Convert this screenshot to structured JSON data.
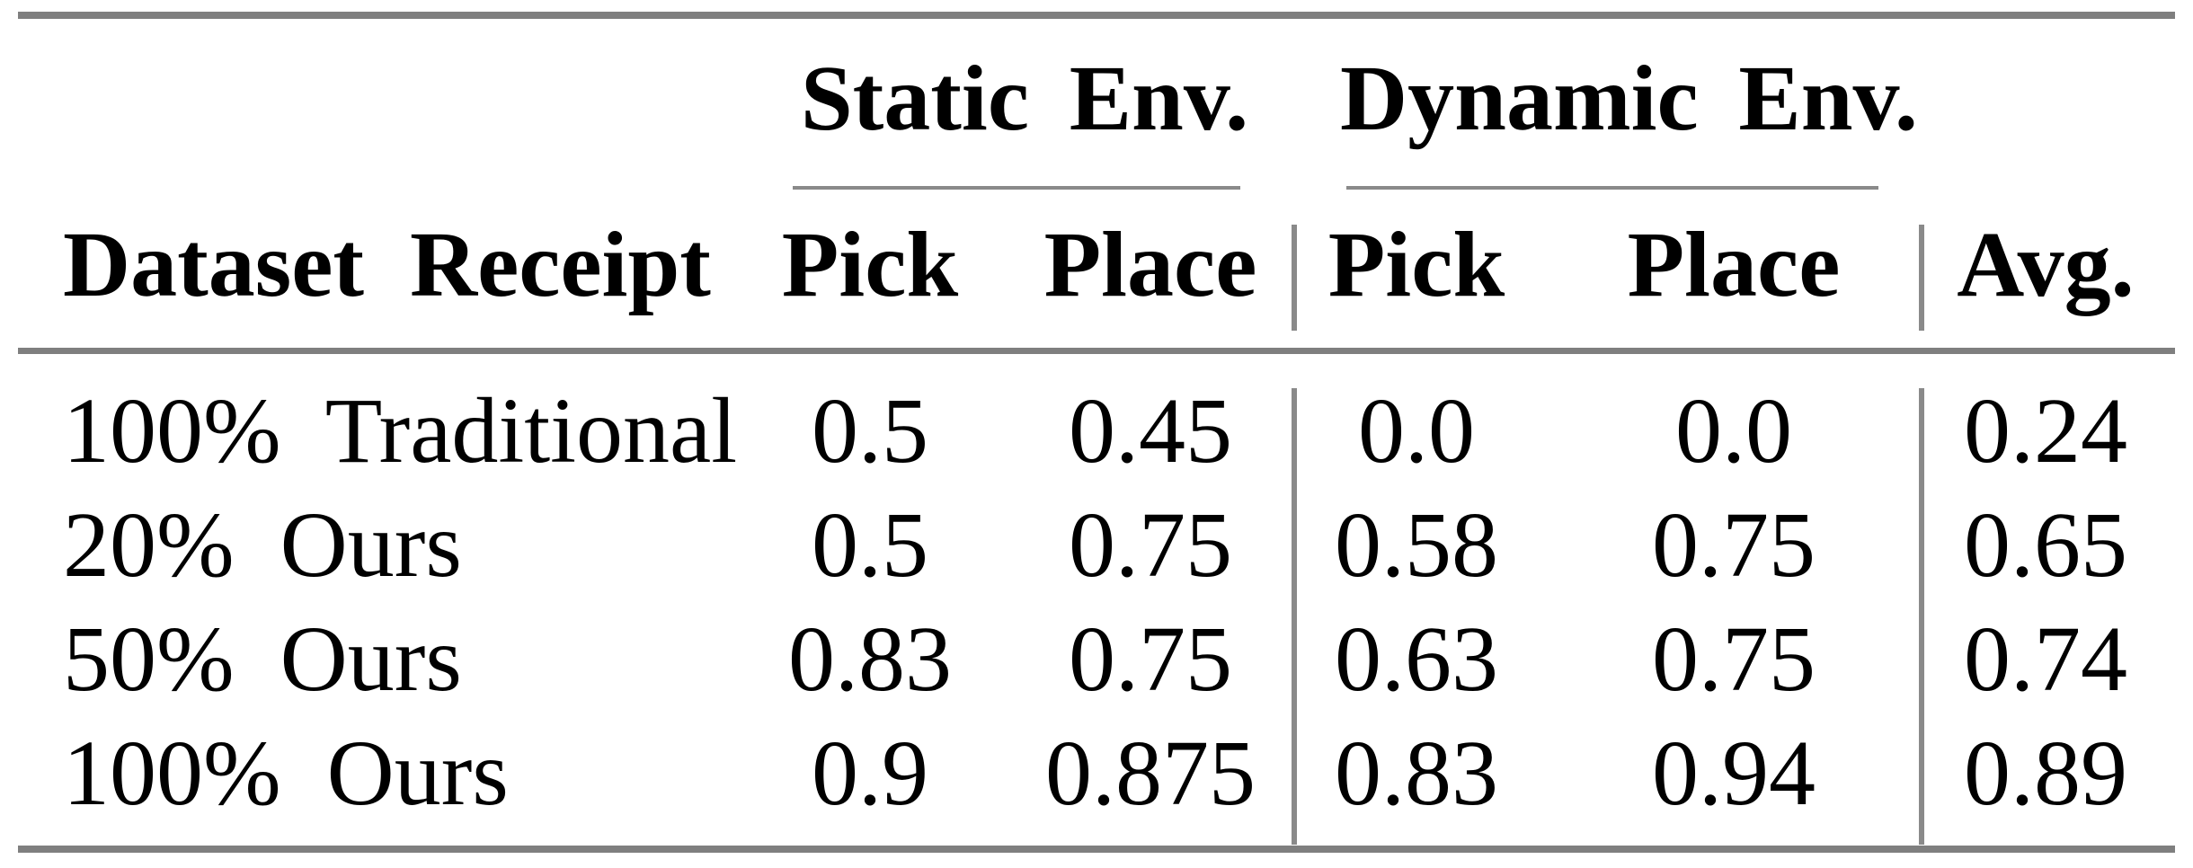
{
  "table": {
    "groups": [
      {
        "label": "Static Env."
      },
      {
        "label": "Dynamic Env."
      }
    ],
    "headers": {
      "row_label": "Dataset Receipt",
      "static_pick": "Pick",
      "static_place": "Place",
      "dynamic_pick": "Pick",
      "dynamic_place": "Place",
      "avg": "Avg."
    },
    "rows": [
      {
        "label": "100% Traditional",
        "static_pick": "0.5",
        "static_place": "0.45",
        "dynamic_pick": "0.0",
        "dynamic_place": "0.0",
        "avg": "0.24"
      },
      {
        "label": "20% Ours",
        "static_pick": "0.5",
        "static_place": "0.75",
        "dynamic_pick": "0.58",
        "dynamic_place": "0.75",
        "avg": "0.65"
      },
      {
        "label": "50% Ours",
        "static_pick": "0.83",
        "static_place": "0.75",
        "dynamic_pick": "0.63",
        "dynamic_place": "0.75",
        "avg": "0.74"
      },
      {
        "label": "100% Ours",
        "static_pick": "0.9",
        "static_place": "0.875",
        "dynamic_pick": "0.83",
        "dynamic_place": "0.94",
        "avg": "0.89"
      }
    ],
    "colors": {
      "text": "#000000",
      "rule": "#7f7f7f",
      "light_rule": "#8a8a8a",
      "background": "#ffffff"
    }
  }
}
